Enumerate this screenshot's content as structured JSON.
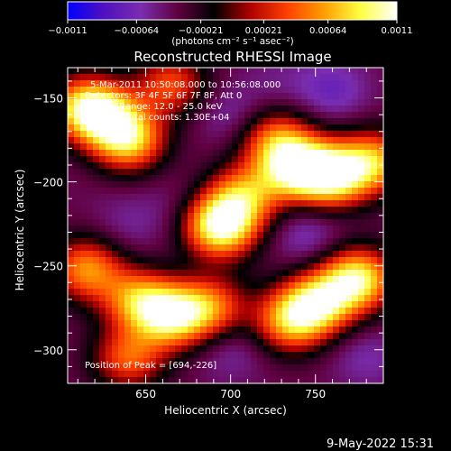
{
  "chart_data": {
    "type": "heatmap",
    "title": "Reconstructed RHESSI Image",
    "xlabel": "Heliocentric X (arcsec)",
    "ylabel": "Heliocentric Y (arcsec)",
    "xlim": [
      604,
      790
    ],
    "ylim": [
      -320,
      -132
    ],
    "xticks": [
      650,
      700,
      750
    ],
    "yticks": [
      -150,
      -200,
      -250,
      -300
    ],
    "colorbar": {
      "unit_label": "(photons cm⁻² s⁻¹ asec⁻²)",
      "range": [
        -0.0011,
        0.0011
      ],
      "ticks": [
        {
          "value": -0.0011,
          "label": "−0.0011"
        },
        {
          "value": -0.00064,
          "label": "−0.00064"
        },
        {
          "value": -0.00021,
          "label": "−0.00021"
        },
        {
          "value": 0.00021,
          "label": "0.00021"
        },
        {
          "value": 0.00064,
          "label": "0.00064"
        },
        {
          "value": 0.0011,
          "label": "0.0011"
        }
      ],
      "colors": [
        "#0000ff",
        "#5010c0",
        "#7a2db0",
        "#600040",
        "#000000",
        "#b00000",
        "#ff4000",
        "#ff9d00",
        "#ffff40",
        "#ffffff"
      ]
    },
    "annotations": [
      "5-Mar-2011 10:50:08.000 to 10:56:08.000",
      "Detectors: 3F 4F 5F 6F 7F 8F, Att 0",
      "Energy Range: 12.0 - 25.0 keV",
      "Clean     Total counts: 1.30E+04",
      "Position of Peak = [694,-226]"
    ],
    "peak": {
      "x": 694,
      "y": -226
    },
    "sources": [
      {
        "x": 694,
        "y": -226,
        "value": 0.0011
      },
      {
        "x": 640,
        "y": -175,
        "value": 0.00075
      },
      {
        "x": 625,
        "y": -160,
        "value": 0.0006
      },
      {
        "x": 612,
        "y": -155,
        "value": 0.00045
      },
      {
        "x": 738,
        "y": -192,
        "value": 0.0008
      },
      {
        "x": 760,
        "y": -196,
        "value": 0.00095
      },
      {
        "x": 785,
        "y": -188,
        "value": 0.0006
      },
      {
        "x": 727,
        "y": -175,
        "value": 0.00042
      },
      {
        "x": 708,
        "y": -208,
        "value": 0.0005
      },
      {
        "x": 775,
        "y": -258,
        "value": 0.0009
      },
      {
        "x": 752,
        "y": -272,
        "value": 0.00075
      },
      {
        "x": 735,
        "y": -283,
        "value": 0.0006
      },
      {
        "x": 615,
        "y": -252,
        "value": 0.00055
      },
      {
        "x": 665,
        "y": -280,
        "value": 0.0008
      },
      {
        "x": 645,
        "y": -270,
        "value": 0.0005
      },
      {
        "x": 688,
        "y": -275,
        "value": 0.00045
      },
      {
        "x": 640,
        "y": -305,
        "value": 0.0004
      },
      {
        "x": 665,
        "y": -142,
        "value": 0.00035
      },
      {
        "x": 670,
        "y": -215,
        "value": -0.0005
      },
      {
        "x": 745,
        "y": -232,
        "value": -0.00065
      },
      {
        "x": 760,
        "y": -145,
        "value": -0.0007
      },
      {
        "x": 700,
        "y": -160,
        "value": -0.0006
      },
      {
        "x": 728,
        "y": -140,
        "value": -0.0005
      },
      {
        "x": 640,
        "y": -225,
        "value": -0.00055
      },
      {
        "x": 700,
        "y": -300,
        "value": -0.0006
      },
      {
        "x": 780,
        "y": -305,
        "value": -0.0006
      },
      {
        "x": 610,
        "y": -200,
        "value": -0.0004
      },
      {
        "x": 700,
        "y": -250,
        "value": -0.00035
      }
    ]
  },
  "footer": {
    "timestamp": "9-May-2022 15:31"
  }
}
